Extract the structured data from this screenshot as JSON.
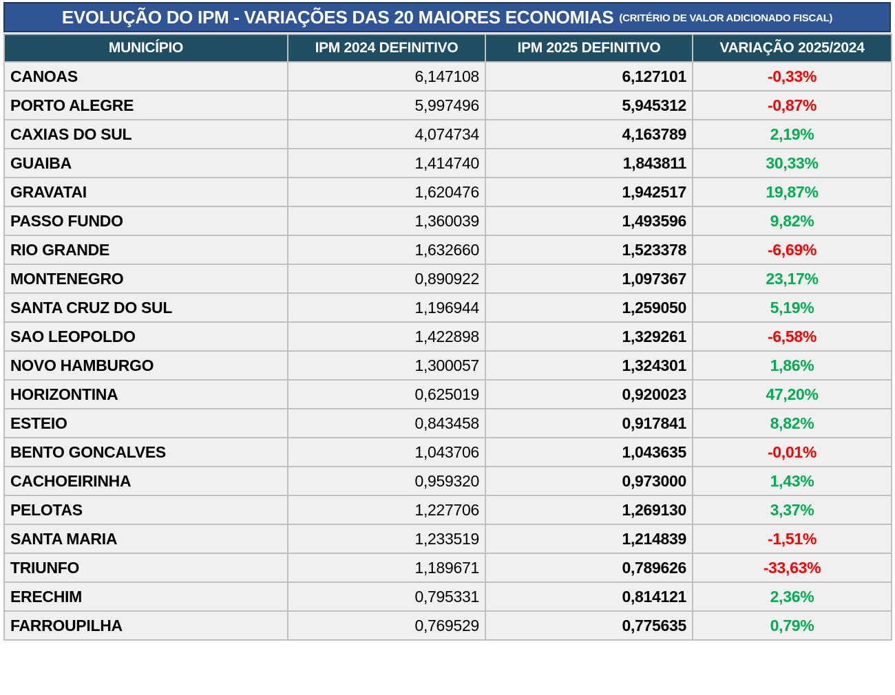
{
  "title": {
    "main": "EVOLUÇÃO DO IPM - VARIAÇÕES DAS 20 MAIORES ECONOMIAS",
    "suffix": "(CRITÉRIO DE VALOR ADICIONADO FISCAL)"
  },
  "table": {
    "columns": [
      "MUNICÍPIO",
      "IPM 2024 DEFINITIVO",
      "IPM 2025 DEFINITIVO",
      "VARIAÇÃO 2025/2024"
    ],
    "rows": [
      {
        "municipio": "CANOAS",
        "ipm2024": "6,147108",
        "ipm2025": "6,127101",
        "variacao": "-0,33%",
        "trend": "down"
      },
      {
        "municipio": "PORTO ALEGRE",
        "ipm2024": "5,997496",
        "ipm2025": "5,945312",
        "variacao": "-0,87%",
        "trend": "down"
      },
      {
        "municipio": "CAXIAS DO SUL",
        "ipm2024": "4,074734",
        "ipm2025": "4,163789",
        "variacao": "2,19%",
        "trend": "up"
      },
      {
        "municipio": "GUAIBA",
        "ipm2024": "1,414740",
        "ipm2025": "1,843811",
        "variacao": "30,33%",
        "trend": "up"
      },
      {
        "municipio": "GRAVATAI",
        "ipm2024": "1,620476",
        "ipm2025": "1,942517",
        "variacao": "19,87%",
        "trend": "up"
      },
      {
        "municipio": "PASSO FUNDO",
        "ipm2024": "1,360039",
        "ipm2025": "1,493596",
        "variacao": "9,82%",
        "trend": "up"
      },
      {
        "municipio": "RIO GRANDE",
        "ipm2024": "1,632660",
        "ipm2025": "1,523378",
        "variacao": "-6,69%",
        "trend": "down"
      },
      {
        "municipio": "MONTENEGRO",
        "ipm2024": "0,890922",
        "ipm2025": "1,097367",
        "variacao": "23,17%",
        "trend": "up"
      },
      {
        "municipio": "SANTA CRUZ DO SUL",
        "ipm2024": "1,196944",
        "ipm2025": "1,259050",
        "variacao": "5,19%",
        "trend": "up"
      },
      {
        "municipio": "SAO LEOPOLDO",
        "ipm2024": "1,422898",
        "ipm2025": "1,329261",
        "variacao": "-6,58%",
        "trend": "down"
      },
      {
        "municipio": "NOVO HAMBURGO",
        "ipm2024": "1,300057",
        "ipm2025": "1,324301",
        "variacao": "1,86%",
        "trend": "up"
      },
      {
        "municipio": "HORIZONTINA",
        "ipm2024": "0,625019",
        "ipm2025": "0,920023",
        "variacao": "47,20%",
        "trend": "up"
      },
      {
        "municipio": "ESTEIO",
        "ipm2024": "0,843458",
        "ipm2025": "0,917841",
        "variacao": "8,82%",
        "trend": "up"
      },
      {
        "municipio": "BENTO GONCALVES",
        "ipm2024": "1,043706",
        "ipm2025": "1,043635",
        "variacao": "-0,01%",
        "trend": "down"
      },
      {
        "municipio": "CACHOEIRINHA",
        "ipm2024": "0,959320",
        "ipm2025": "0,973000",
        "variacao": "1,43%",
        "trend": "up"
      },
      {
        "municipio": "PELOTAS",
        "ipm2024": "1,227706",
        "ipm2025": "1,269130",
        "variacao": "3,37%",
        "trend": "up"
      },
      {
        "municipio": "SANTA MARIA",
        "ipm2024": "1,233519",
        "ipm2025": "1,214839",
        "variacao": "-1,51%",
        "trend": "down"
      },
      {
        "municipio": "TRIUNFO",
        "ipm2024": "1,189671",
        "ipm2025": "0,789626",
        "variacao": "-33,63%",
        "trend": "down"
      },
      {
        "municipio": "ERECHIM",
        "ipm2024": "0,795331",
        "ipm2025": "0,814121",
        "variacao": "2,36%",
        "trend": "up"
      },
      {
        "municipio": "FARROUPILHA",
        "ipm2024": "0,769529",
        "ipm2025": "0,775635",
        "variacao": "0,79%",
        "trend": "up"
      }
    ]
  },
  "colors": {
    "title_background": "#2F5597",
    "title_border": "#1F3864",
    "header_background": "#1F4E63",
    "row_background": "#F0F0F0",
    "grid_line": "#BFBFBF",
    "positive_variation": "#00B050",
    "negative_variation": "#FF0000"
  },
  "chart_data": {
    "type": "table",
    "title": "EVOLUÇÃO DO IPM - VARIAÇÕES DAS 20 MAIORES ECONOMIAS (CRITÉRIO DE VALOR ADICIONADO FISCAL)",
    "columns": [
      "MUNICÍPIO",
      "IPM 2024 DEFINITIVO",
      "IPM 2025 DEFINITIVO",
      "VARIAÇÃO 2025/2024"
    ],
    "categories": [
      "CANOAS",
      "PORTO ALEGRE",
      "CAXIAS DO SUL",
      "GUAIBA",
      "GRAVATAI",
      "PASSO FUNDO",
      "RIO GRANDE",
      "MONTENEGRO",
      "SANTA CRUZ DO SUL",
      "SAO LEOPOLDO",
      "NOVO HAMBURGO",
      "HORIZONTINA",
      "ESTEIO",
      "BENTO GONCALVES",
      "CACHOEIRINHA",
      "PELOTAS",
      "SANTA MARIA",
      "TRIUNFO",
      "ERECHIM",
      "FARROUPILHA"
    ],
    "series": [
      {
        "name": "IPM 2024 DEFINITIVO",
        "values": [
          6.147108,
          5.997496,
          4.074734,
          1.41474,
          1.620476,
          1.360039,
          1.63266,
          0.890922,
          1.196944,
          1.422898,
          1.300057,
          0.625019,
          0.843458,
          1.043706,
          0.95932,
          1.227706,
          1.233519,
          1.189671,
          0.795331,
          0.769529
        ]
      },
      {
        "name": "IPM 2025 DEFINITIVO",
        "values": [
          6.127101,
          5.945312,
          4.163789,
          1.843811,
          1.942517,
          1.493596,
          1.523378,
          1.097367,
          1.25905,
          1.329261,
          1.324301,
          0.920023,
          0.917841,
          1.043635,
          0.973,
          1.26913,
          1.214839,
          0.789626,
          0.814121,
          0.775635
        ]
      },
      {
        "name": "VARIAÇÃO 2025/2024 (%)",
        "values": [
          -0.33,
          -0.87,
          2.19,
          30.33,
          19.87,
          9.82,
          -6.69,
          23.17,
          5.19,
          -6.58,
          1.86,
          47.2,
          8.82,
          -0.01,
          1.43,
          3.37,
          -1.51,
          -33.63,
          2.36,
          0.79
        ]
      }
    ]
  }
}
